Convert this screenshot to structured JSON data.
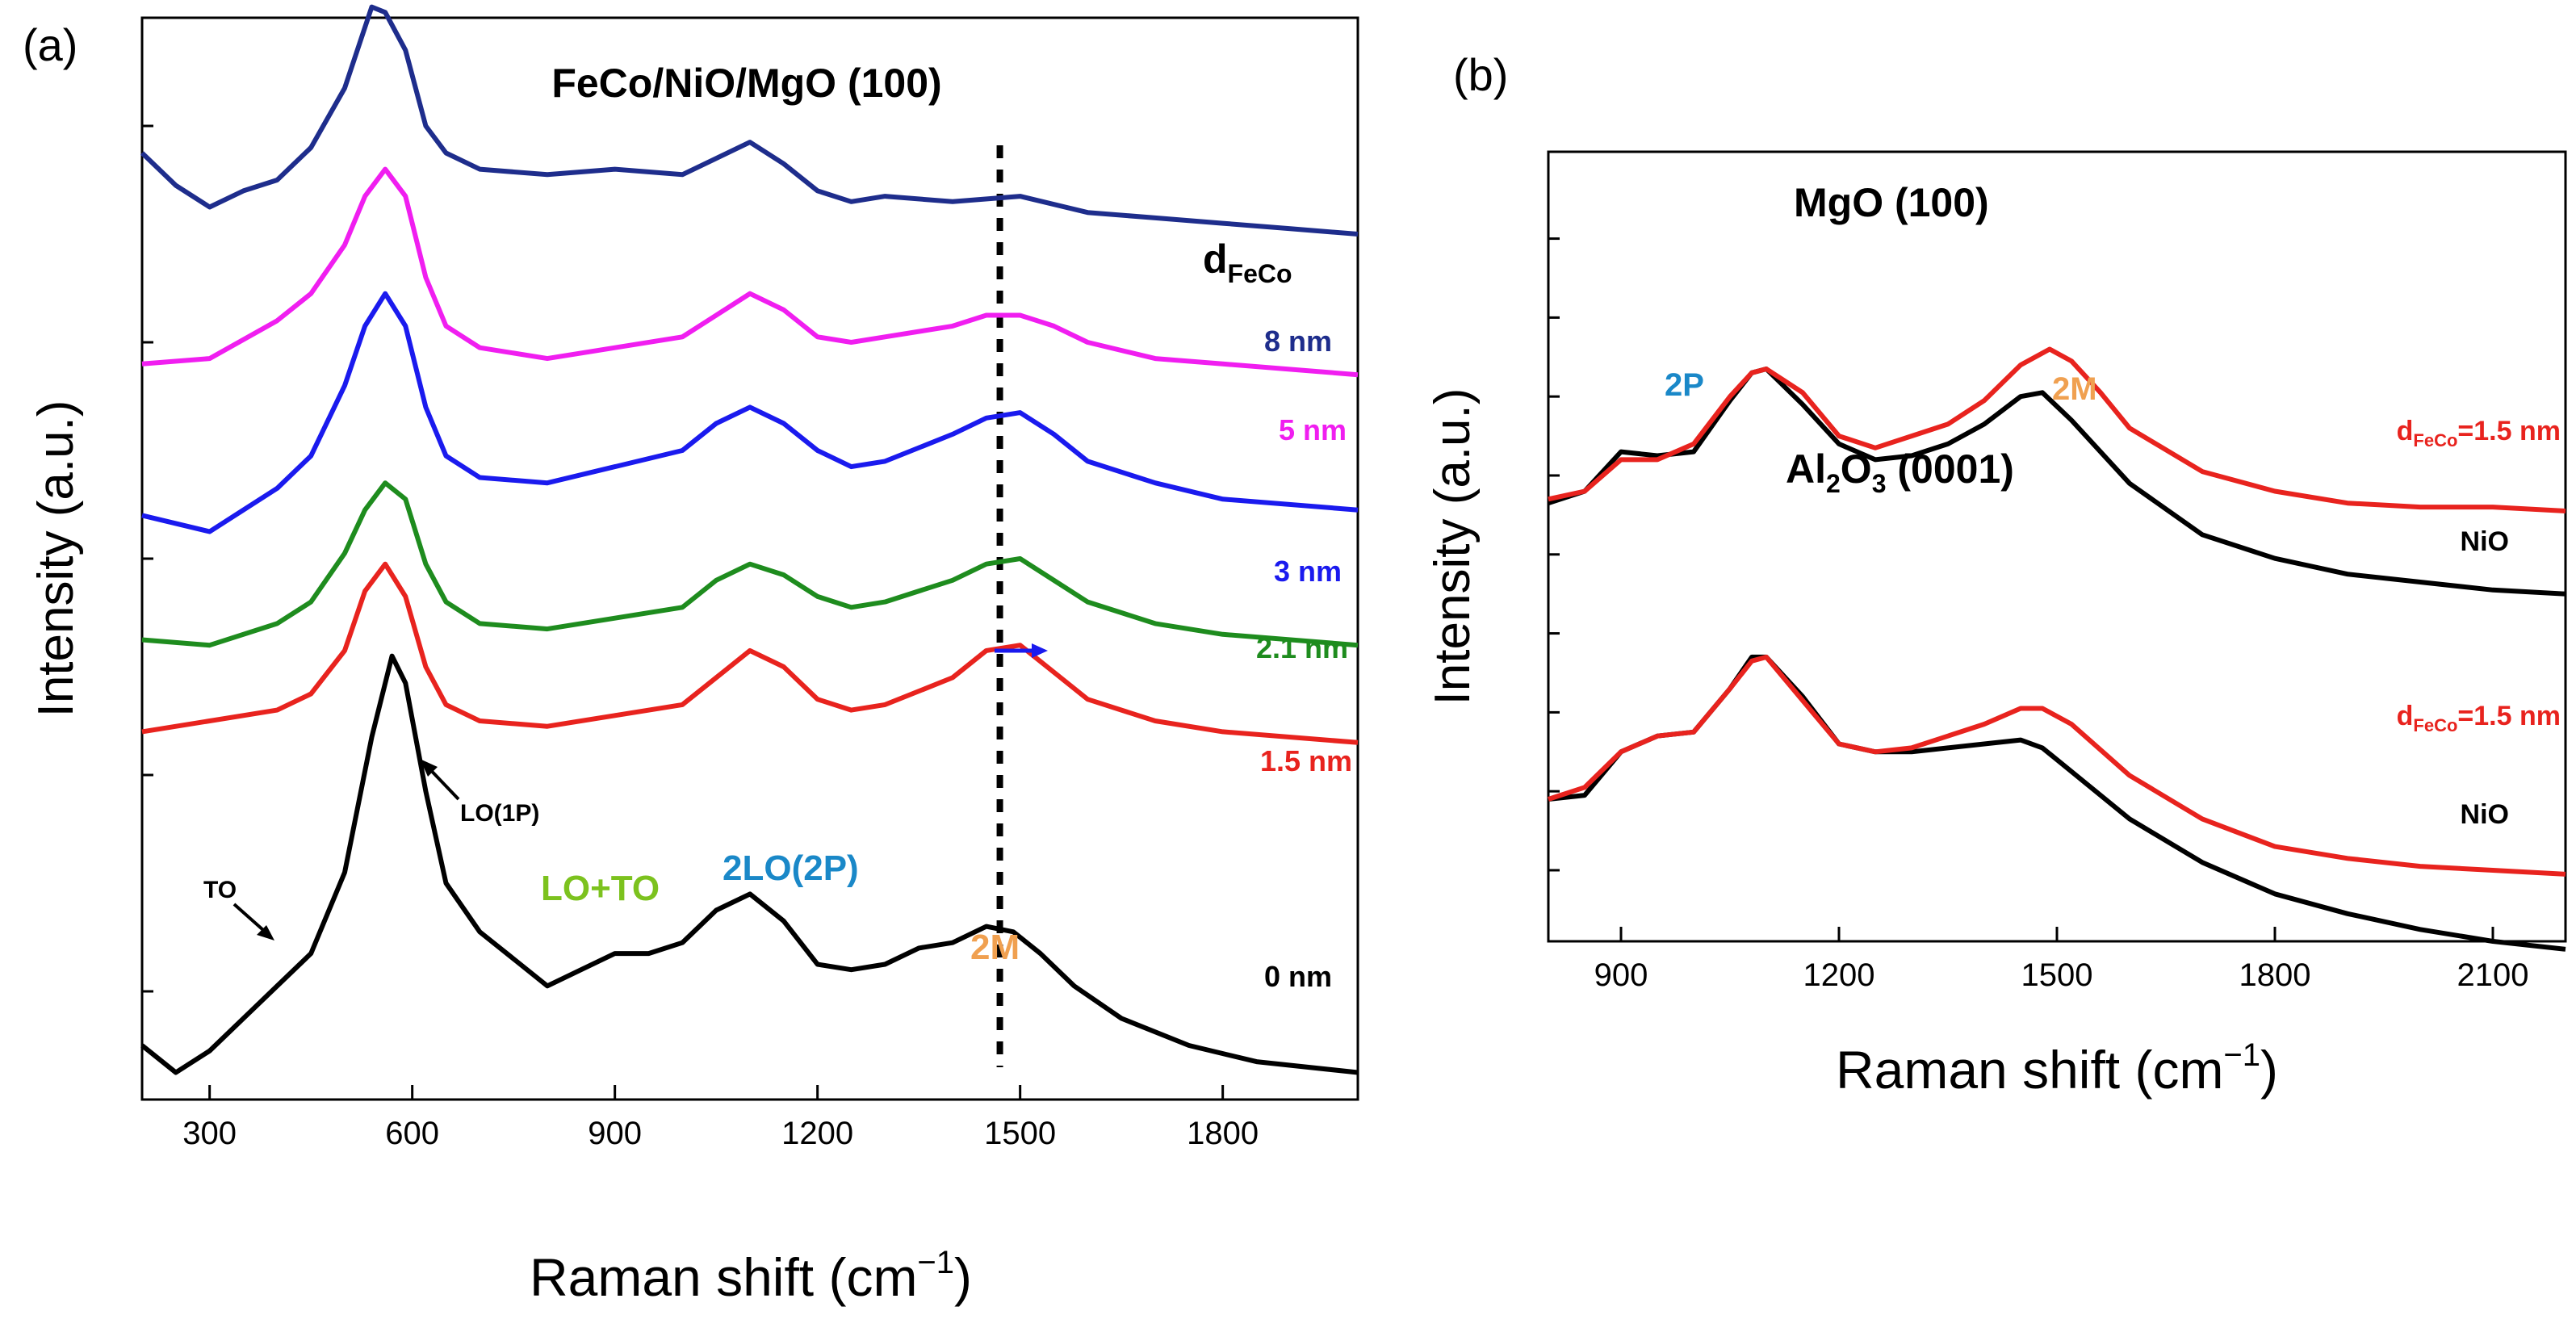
{
  "panel_labels": [
    "(a)",
    "(b)"
  ],
  "colors": {
    "black": "#000000",
    "red": "#e8231e",
    "green": "#1e8c1e",
    "blue": "#1a1aee",
    "magenta": "#f01ef0",
    "navy": "#1e2d8c",
    "label_blue": "#1a88c8",
    "label_orange": "#f0a050",
    "label_green": "#7cc21e"
  },
  "chart_data": [
    {
      "type": "line",
      "panel": "(a)",
      "title": "FeCo/NiO/MgO (100)",
      "xlabel": "Raman shift (cm",
      "xlabel_sup": "−1",
      "xlabel_close": ")",
      "ylabel": "Intensity (a.u.)",
      "xlim": [
        200,
        2000
      ],
      "ylim": [
        0,
        10
      ],
      "x_ticks": [
        300,
        600,
        900,
        1200,
        1500,
        1800
      ],
      "x_tick_labels": [
        "300",
        "600",
        "900",
        "1200",
        "1500",
        "1800"
      ],
      "y_ticks": [
        1,
        3,
        5,
        7,
        9
      ],
      "grid": false,
      "legend_title": "d",
      "legend_title_sub": "FeCo",
      "dashed_marker_x": 1470,
      "series": [
        {
          "name": "0 nm",
          "color": "#000000",
          "offset": 0.5,
          "x": [
            200,
            250,
            300,
            350,
            400,
            450,
            500,
            540,
            570,
            590,
            620,
            650,
            700,
            750,
            800,
            850,
            900,
            950,
            1000,
            1050,
            1100,
            1150,
            1200,
            1250,
            1300,
            1350,
            1400,
            1450,
            1490,
            1530,
            1580,
            1650,
            1750,
            1850,
            2000
          ],
          "y": [
            0.0,
            -0.25,
            -0.05,
            0.25,
            0.55,
            0.85,
            1.6,
            2.85,
            3.6,
            3.35,
            2.35,
            1.5,
            1.05,
            0.8,
            0.55,
            0.7,
            0.85,
            0.85,
            0.95,
            1.25,
            1.4,
            1.15,
            0.75,
            0.7,
            0.75,
            0.9,
            0.95,
            1.1,
            1.05,
            0.85,
            0.55,
            0.25,
            0.0,
            -0.15,
            -0.25
          ]
        },
        {
          "name": "1.5 nm",
          "color": "#e8231e",
          "offset": 3.4,
          "x": [
            200,
            300,
            400,
            450,
            500,
            530,
            560,
            590,
            620,
            650,
            700,
            800,
            900,
            1000,
            1050,
            1100,
            1150,
            1200,
            1250,
            1300,
            1400,
            1450,
            1500,
            1550,
            1600,
            1700,
            1800,
            2000
          ],
          "y": [
            0.0,
            0.1,
            0.2,
            0.35,
            0.75,
            1.3,
            1.55,
            1.25,
            0.6,
            0.25,
            0.1,
            0.05,
            0.15,
            0.25,
            0.5,
            0.75,
            0.6,
            0.3,
            0.2,
            0.25,
            0.5,
            0.75,
            0.8,
            0.55,
            0.3,
            0.1,
            0.0,
            -0.1
          ]
        },
        {
          "name": "2.1 nm",
          "color": "#1e8c1e",
          "offset": 4.25,
          "x": [
            200,
            300,
            400,
            450,
            500,
            530,
            560,
            590,
            620,
            650,
            700,
            800,
            900,
            1000,
            1050,
            1100,
            1150,
            1200,
            1250,
            1300,
            1400,
            1450,
            1500,
            1550,
            1600,
            1700,
            1800,
            2000
          ],
          "y": [
            0.0,
            -0.05,
            0.15,
            0.35,
            0.8,
            1.2,
            1.45,
            1.3,
            0.7,
            0.35,
            0.15,
            0.1,
            0.2,
            0.3,
            0.55,
            0.7,
            0.6,
            0.4,
            0.3,
            0.35,
            0.55,
            0.7,
            0.75,
            0.55,
            0.35,
            0.15,
            0.05,
            -0.05
          ]
        },
        {
          "name": "3 nm",
          "color": "#1a1aee",
          "offset": 5.4,
          "x": [
            200,
            300,
            400,
            450,
            500,
            530,
            560,
            590,
            620,
            650,
            700,
            800,
            900,
            1000,
            1050,
            1100,
            1150,
            1200,
            1250,
            1300,
            1400,
            1450,
            1500,
            1550,
            1600,
            1700,
            1800,
            2000
          ],
          "y": [
            0.0,
            -0.15,
            0.25,
            0.55,
            1.2,
            1.75,
            2.05,
            1.75,
            1.0,
            0.55,
            0.35,
            0.3,
            0.45,
            0.6,
            0.85,
            1.0,
            0.85,
            0.6,
            0.45,
            0.5,
            0.75,
            0.9,
            0.95,
            0.75,
            0.5,
            0.3,
            0.15,
            0.05
          ]
        },
        {
          "name": "5 nm",
          "color": "#f01ef0",
          "offset": 6.8,
          "x": [
            200,
            300,
            400,
            450,
            500,
            530,
            560,
            590,
            620,
            650,
            700,
            800,
            900,
            1000,
            1050,
            1100,
            1150,
            1200,
            1250,
            1300,
            1400,
            1450,
            1500,
            1550,
            1600,
            1700,
            1800,
            2000
          ],
          "y": [
            0.0,
            0.05,
            0.4,
            0.65,
            1.1,
            1.55,
            1.8,
            1.55,
            0.8,
            0.35,
            0.15,
            0.05,
            0.15,
            0.25,
            0.45,
            0.65,
            0.5,
            0.25,
            0.2,
            0.25,
            0.35,
            0.45,
            0.45,
            0.35,
            0.2,
            0.05,
            0.0,
            -0.1
          ]
        },
        {
          "name": "8 nm",
          "color": "#1e2d8c",
          "offset": 8.35,
          "x": [
            200,
            250,
            300,
            350,
            400,
            450,
            500,
            540,
            560,
            590,
            620,
            650,
            700,
            800,
            900,
            1000,
            1050,
            1100,
            1150,
            1200,
            1250,
            1300,
            1400,
            1500,
            1600,
            1700,
            1800,
            1900,
            2000
          ],
          "y": [
            0.4,
            0.1,
            -0.1,
            0.05,
            0.15,
            0.45,
            1.0,
            1.75,
            1.7,
            1.35,
            0.65,
            0.4,
            0.25,
            0.2,
            0.25,
            0.2,
            0.35,
            0.5,
            0.3,
            0.05,
            -0.05,
            0.0,
            -0.05,
            0.0,
            -0.15,
            -0.2,
            -0.25,
            -0.3,
            -0.35
          ]
        }
      ],
      "annotations": [
        {
          "text": "TO",
          "color": "#000000",
          "x": 335,
          "y": 3.45
        },
        {
          "text": "LO(1P)",
          "color": "#000000",
          "x": 610,
          "y": 4.0
        },
        {
          "text": "LO+TO",
          "color": "#7cc21e",
          "x": 760,
          "y": 2.0
        },
        {
          "text": "2LO(2P)",
          "color": "#1a88c8",
          "x": 1030,
          "y": 2.3
        },
        {
          "text": "2M",
          "color": "#f0a050",
          "x": 1450,
          "y": 1.95
        }
      ]
    },
    {
      "type": "line",
      "panel": "(b)",
      "xlabel": "Raman shift (cm",
      "xlabel_sup": "−1",
      "xlabel_close": ")",
      "ylabel": "Intensity (a.u.)",
      "xlim": [
        800,
        2200
      ],
      "ylim": [
        0,
        10
      ],
      "x_ticks": [
        900,
        1200,
        1500,
        1800,
        2100
      ],
      "x_tick_labels": [
        "900",
        "1200",
        "1500",
        "1800",
        "2100"
      ],
      "y_ticks": [
        0.9,
        1.9,
        2.9,
        3.9,
        4.9,
        5.9,
        6.9,
        7.9,
        8.9
      ],
      "grid": false,
      "groups": [
        {
          "label": "MgO (100)",
          "label_sub": "",
          "label_rest": ""
        },
        {
          "label": "Al",
          "label_sub": "2",
          "label_rest": "O",
          "label_sub2": "3",
          "label_tail": " (0001)"
        }
      ],
      "series": [
        {
          "name": "NiO",
          "group": "MgO (100)",
          "color": "#000000",
          "x": [
            800,
            850,
            900,
            950,
            1000,
            1050,
            1080,
            1100,
            1150,
            1200,
            1250,
            1300,
            1350,
            1400,
            1450,
            1480,
            1520,
            1600,
            1700,
            1800,
            1900,
            2000,
            2100,
            2200
          ],
          "y": [
            5.55,
            5.7,
            6.2,
            6.15,
            6.2,
            6.85,
            7.2,
            7.25,
            6.8,
            6.3,
            6.1,
            6.15,
            6.3,
            6.55,
            6.9,
            6.95,
            6.6,
            5.8,
            5.15,
            4.85,
            4.65,
            4.55,
            4.45,
            4.4
          ]
        },
        {
          "name": "d_FeCo=1.5 nm",
          "group": "MgO (100)",
          "color": "#e8231e",
          "x": [
            800,
            850,
            900,
            950,
            1000,
            1050,
            1080,
            1100,
            1150,
            1200,
            1250,
            1300,
            1350,
            1400,
            1450,
            1490,
            1520,
            1560,
            1600,
            1700,
            1800,
            1900,
            2000,
            2100,
            2200
          ],
          "y": [
            5.6,
            5.7,
            6.1,
            6.1,
            6.3,
            6.9,
            7.2,
            7.25,
            6.95,
            6.4,
            6.25,
            6.4,
            6.55,
            6.85,
            7.3,
            7.5,
            7.35,
            6.95,
            6.5,
            5.95,
            5.7,
            5.55,
            5.5,
            5.5,
            5.45
          ]
        },
        {
          "name": "NiO",
          "group": "Al2O3 (0001)",
          "color": "#000000",
          "x": [
            800,
            850,
            900,
            950,
            1000,
            1050,
            1080,
            1100,
            1150,
            1200,
            1250,
            1300,
            1350,
            1400,
            1450,
            1480,
            1520,
            1600,
            1700,
            1800,
            1900,
            2000,
            2100,
            2200
          ],
          "y": [
            1.8,
            1.85,
            2.4,
            2.6,
            2.65,
            3.2,
            3.6,
            3.6,
            3.1,
            2.5,
            2.4,
            2.4,
            2.45,
            2.5,
            2.55,
            2.45,
            2.15,
            1.55,
            1.0,
            0.6,
            0.35,
            0.15,
            0.0,
            -0.1
          ]
        },
        {
          "name": "d_FeCo=1.5 nm",
          "group": "Al2O3 (0001)",
          "color": "#e8231e",
          "x": [
            800,
            850,
            900,
            950,
            1000,
            1050,
            1080,
            1100,
            1150,
            1200,
            1250,
            1300,
            1350,
            1400,
            1450,
            1480,
            1520,
            1600,
            1700,
            1800,
            1900,
            2000,
            2100,
            2200
          ],
          "y": [
            1.8,
            1.95,
            2.4,
            2.6,
            2.65,
            3.2,
            3.55,
            3.6,
            3.05,
            2.5,
            2.4,
            2.45,
            2.6,
            2.75,
            2.95,
            2.95,
            2.75,
            2.1,
            1.55,
            1.2,
            1.05,
            0.95,
            0.9,
            0.85
          ]
        }
      ],
      "series_labels": [
        {
          "text": "d",
          "sub": "FeCo",
          "rest": "=1.5 nm",
          "color": "#e8231e",
          "group": 0
        },
        {
          "text": "NiO",
          "color": "#000000",
          "group": 0
        },
        {
          "text": "d",
          "sub": "FeCo",
          "rest": "=1.5 nm",
          "color": "#e8231e",
          "group": 1
        },
        {
          "text": "NiO",
          "color": "#000000",
          "group": 1
        }
      ],
      "annotations": [
        {
          "text": "2P",
          "color": "#1a88c8"
        },
        {
          "text": "2M",
          "color": "#f0a050"
        }
      ]
    }
  ]
}
